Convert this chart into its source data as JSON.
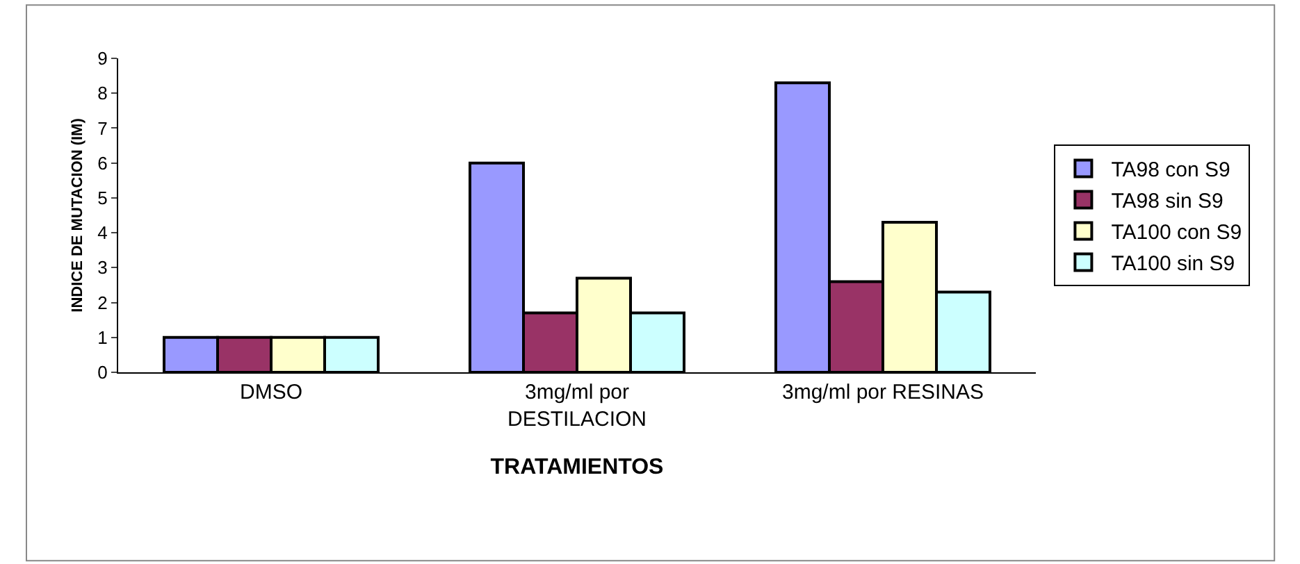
{
  "chart_data": {
    "type": "bar",
    "xlabel": "TRATAMIENTOS",
    "ylabel": "INDICE DE MUTACION (IM)",
    "categories": [
      "DMSO",
      "3mg/ml por\nDESTILACION",
      "3mg/ml por RESINAS"
    ],
    "series": [
      {
        "name": "TA98 con S9",
        "color": "#9999ff",
        "values": [
          1,
          6.0,
          8.3
        ]
      },
      {
        "name": "TA98 sin S9",
        "color": "#993366",
        "values": [
          1,
          1.7,
          2.6
        ]
      },
      {
        "name": "TA100 con S9",
        "color": "#ffffcc",
        "values": [
          1,
          2.7,
          4.3
        ]
      },
      {
        "name": "TA100 sin S9",
        "color": "#ccffff",
        "values": [
          1,
          1.7,
          2.3
        ]
      }
    ],
    "ylim": [
      0,
      9
    ],
    "yticks": [
      0,
      1,
      2,
      3,
      4,
      5,
      6,
      7,
      8,
      9
    ],
    "legend": "right"
  }
}
